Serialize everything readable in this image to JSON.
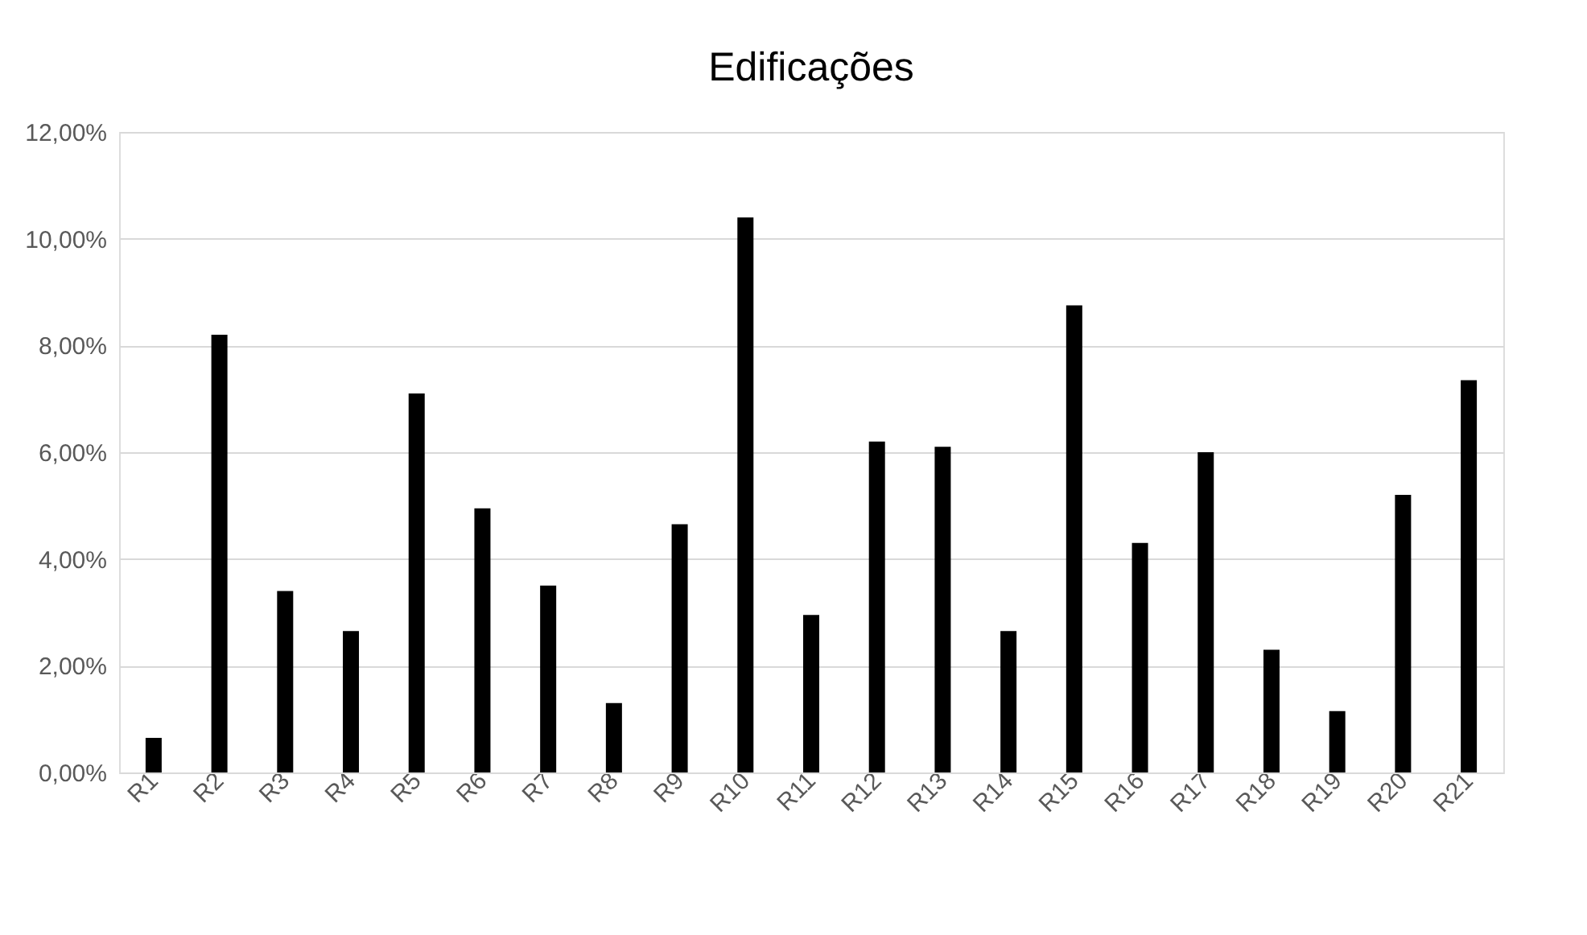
{
  "chart_data": {
    "type": "bar",
    "title": "Edificações",
    "categories": [
      "R1",
      "R2",
      "R3",
      "R4",
      "R5",
      "R6",
      "R7",
      "R8",
      "R9",
      "R10",
      "R11",
      "R12",
      "R13",
      "R14",
      "R15",
      "R16",
      "R17",
      "R18",
      "R19",
      "R20",
      "R21"
    ],
    "values": [
      0.65,
      8.2,
      3.4,
      2.65,
      7.1,
      4.95,
      3.5,
      1.3,
      4.65,
      10.4,
      2.95,
      6.2,
      6.1,
      2.65,
      8.75,
      4.3,
      6.0,
      2.3,
      1.15,
      5.2,
      7.35
    ],
    "color": "#000000",
    "ylim": [
      0,
      12
    ],
    "yticks": [
      {
        "value": 0,
        "label": "0,00%"
      },
      {
        "value": 2,
        "label": "2,00%"
      },
      {
        "value": 4,
        "label": "4,00%"
      },
      {
        "value": 6,
        "label": "6,00%"
      },
      {
        "value": 8,
        "label": "8,00%"
      },
      {
        "value": 10,
        "label": "10,00%"
      },
      {
        "value": 12,
        "label": "12,00%"
      }
    ],
    "grid": "y"
  }
}
